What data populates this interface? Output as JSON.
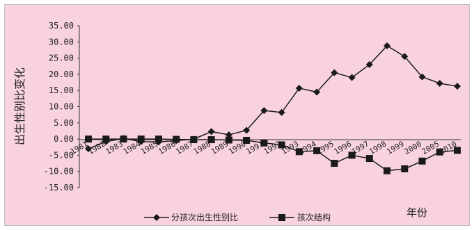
{
  "chart_data": {
    "type": "line",
    "title": "",
    "ylabel": "出生性别比变化",
    "xlabel": "年份",
    "ylim": [
      -15,
      35
    ],
    "yticks": [
      "35.00",
      "30.00",
      "25.00",
      "20.00",
      "15.00",
      "10.00",
      "5.00",
      "0.00",
      "-5.00",
      "-10.00",
      "-15.00"
    ],
    "ytick_values": [
      35,
      30,
      25,
      20,
      15,
      10,
      5,
      0,
      -5,
      -10,
      -15
    ],
    "categories": [
      "1981",
      "1982",
      "1983",
      "1984",
      "1985",
      "1986",
      "1987",
      "1988",
      "1989",
      "1990",
      "1991",
      "1992",
      "1993",
      "1994",
      "1995",
      "1996",
      "1997",
      "1998",
      "1999",
      "2000",
      "2005",
      "2010"
    ],
    "legend_position": "bottom",
    "series": [
      {
        "name": "分孩次出生性别比",
        "marker": "diamond",
        "color": "#1a1a1a",
        "values": [
          -3.0,
          -0.8,
          0.2,
          -0.8,
          -0.9,
          -0.5,
          0.0,
          2.3,
          1.3,
          2.7,
          8.8,
          8.2,
          15.7,
          14.5,
          20.5,
          19.0,
          23.0,
          28.8,
          25.5,
          19.2,
          17.2,
          16.3
        ]
      },
      {
        "name": "孩次结构",
        "marker": "square",
        "color": "#1a1a1a",
        "values": [
          0.0,
          0.0,
          0.0,
          0.0,
          0.0,
          -0.1,
          -0.2,
          -0.2,
          -0.3,
          -0.4,
          -1.2,
          -1.8,
          -3.9,
          -3.6,
          -7.5,
          -5.0,
          -6.0,
          -9.8,
          -9.2,
          -6.8,
          -4.0,
          -3.5
        ]
      }
    ]
  }
}
